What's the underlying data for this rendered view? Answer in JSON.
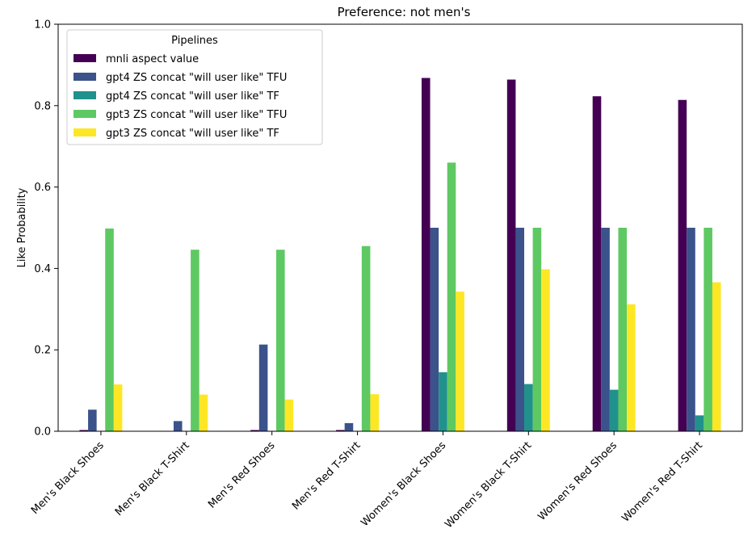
{
  "chart_data": {
    "type": "bar",
    "title": "Preference: not men's",
    "xlabel": "",
    "ylabel": "Like Probability",
    "ylim": [
      0,
      1.0
    ],
    "yticks": [
      "0.0",
      "0.2",
      "0.4",
      "0.6",
      "0.8",
      "1.0"
    ],
    "grid": false,
    "legend": {
      "title": "Pipelines",
      "placement": "top-left"
    },
    "categories": [
      "Men's Black Shoes",
      "Men's Black T-Shirt",
      "Men's Red Shoes",
      "Men's Red T-Shirt",
      "Women's Black Shoes",
      "Women's Black T-Shirt",
      "Women's Red Shoes",
      "Women's Red T-Shirt"
    ],
    "series": [
      {
        "name": "mnli aspect value",
        "color": "#440154",
        "values": [
          0.003,
          0.001,
          0.003,
          0.003,
          0.868,
          0.864,
          0.823,
          0.814
        ]
      },
      {
        "name": "gpt4 ZS concat \"will user like\" TFU",
        "color": "#3b528b",
        "values": [
          0.053,
          0.025,
          0.213,
          0.02,
          0.5,
          0.5,
          0.5,
          0.5
        ]
      },
      {
        "name": "gpt4 ZS concat \"will user like\" TF",
        "color": "#21918c",
        "values": [
          0.0,
          0.0,
          0.0,
          0.0,
          0.145,
          0.116,
          0.102,
          0.039
        ]
      },
      {
        "name": "gpt3 ZS concat \"will user like\" TFU",
        "color": "#5ec962",
        "values": [
          0.498,
          0.446,
          0.446,
          0.455,
          0.66,
          0.5,
          0.5,
          0.5
        ]
      },
      {
        "name": "gpt3 ZS concat \"will user like\" TF",
        "color": "#fde725",
        "values": [
          0.115,
          0.09,
          0.078,
          0.091,
          0.343,
          0.398,
          0.312,
          0.366
        ]
      }
    ]
  }
}
